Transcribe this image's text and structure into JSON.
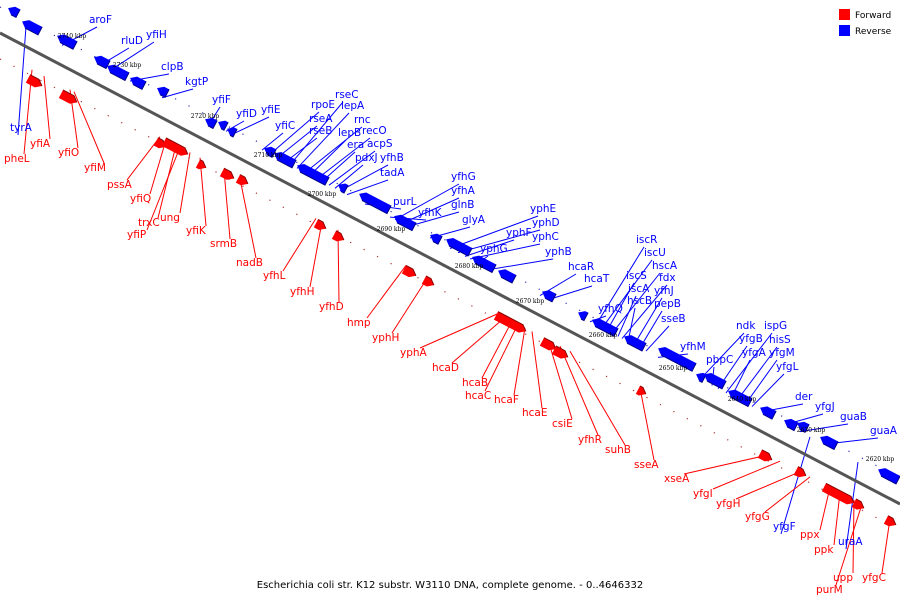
{
  "legend": {
    "forward_label": "Forward",
    "reverse_label": "Reverse",
    "forward_color": "#ff0000",
    "reverse_color": "#0000ff"
  },
  "caption": "Escherichia coli str. K12 substr. W3110 DNA, complete genome. - 0..4646332",
  "ticks": [
    "2740 kbp",
    "2730 kbp",
    "2720 kbp",
    "2710 kbp",
    "2700 kbp",
    "2690 kbp",
    "2680 kbp",
    "2670 kbp",
    "2660 kbp",
    "2650 kbp",
    "2640 kbp",
    "2630 kbp",
    "2620 kbp"
  ],
  "genes": {
    "reverse": [
      "aroF",
      "rluD",
      "yfiH",
      "clpB",
      "kgtP",
      "yfiF",
      "yfiD",
      "yfiE",
      "yfiC",
      "rpoE",
      "rseA",
      "rseB",
      "rseC",
      "lepA",
      "rnc",
      "lepB",
      "recO",
      "era",
      "acpS",
      "pdxJ",
      "yfhB",
      "tadA",
      "purL",
      "yfhK",
      "yfhG",
      "yfhA",
      "glnB",
      "glyA",
      "yphE",
      "yphD",
      "yphF",
      "yphC",
      "yphG",
      "yphB",
      "hcaR",
      "hcaT",
      "yfhQ",
      "iscR",
      "iscU",
      "iscS",
      "hscA",
      "iscA",
      "fdx",
      "hscB",
      "yfhJ",
      "pepB",
      "sseB",
      "yfhM",
      "ndk",
      "pbpC",
      "yfgB",
      "ispG",
      "yfgA",
      "hisS",
      "yfgM",
      "yfgL",
      "der",
      "yfgJ",
      "guaB",
      "guaA",
      "yfgF",
      "uraA",
      "tyrA"
    ],
    "forward": [
      "pheL",
      "yfiA",
      "yfiO",
      "yfiM",
      "pssA",
      "yfiQ",
      "trxC",
      "ung",
      "yfiP",
      "yfiK",
      "srmB",
      "nadB",
      "yfhL",
      "yfhH",
      "yfhD",
      "hmp",
      "yphH",
      "yphA",
      "hcaD",
      "hcaB",
      "hcaC",
      "hcaF",
      "hcaE",
      "csiE",
      "yfhR",
      "suhB",
      "sseA",
      "xseA",
      "yfgI",
      "yfgH",
      "yfgG",
      "ppx",
      "ppk",
      "upp",
      "purM",
      "yfgC"
    ]
  }
}
